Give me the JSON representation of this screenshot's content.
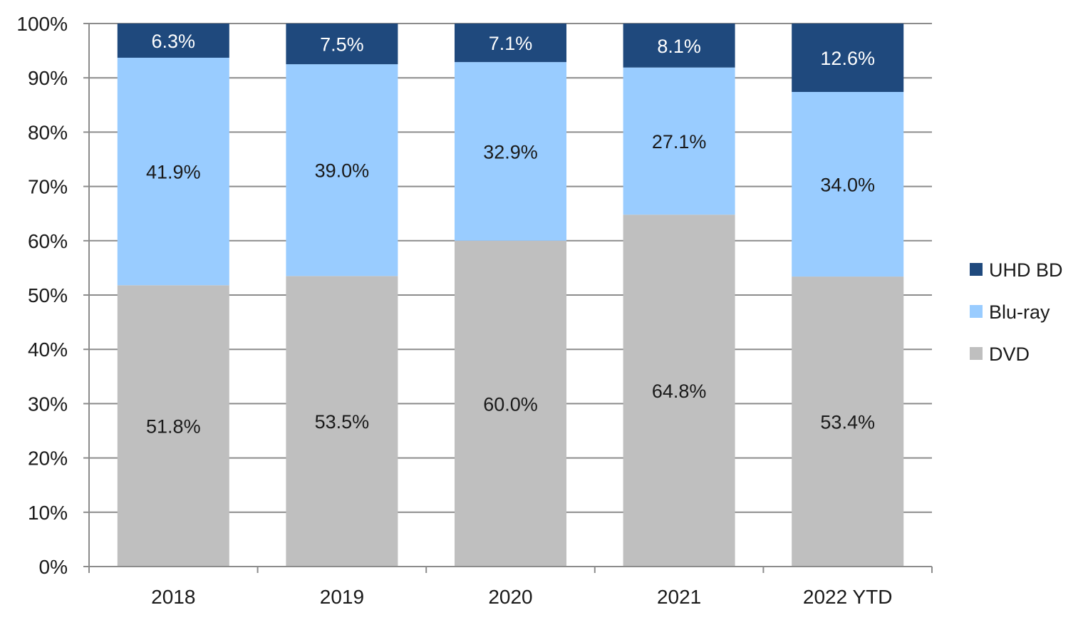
{
  "chart_data": {
    "type": "bar",
    "stacked": true,
    "percent": true,
    "title": "",
    "xlabel": "",
    "ylabel": "",
    "ylim": [
      0,
      100
    ],
    "y_ticks": [
      "0%",
      "10%",
      "20%",
      "30%",
      "40%",
      "50%",
      "60%",
      "70%",
      "80%",
      "90%",
      "100%"
    ],
    "grid": true,
    "legend_position": "right",
    "categories": [
      "2018",
      "2019",
      "2020",
      "2021",
      "2022 YTD"
    ],
    "series": [
      {
        "name": "DVD",
        "color": "#bfbfbf",
        "label_color": "#1a1a1a",
        "values": [
          51.8,
          53.5,
          60.0,
          64.8,
          53.4
        ],
        "labels": [
          "51.8%",
          "53.5%",
          "60.0%",
          "64.8%",
          "53.4%"
        ]
      },
      {
        "name": "Blu-ray",
        "color": "#99ccff",
        "label_color": "#1a1a1a",
        "values": [
          41.9,
          39.0,
          32.9,
          27.1,
          34.0
        ],
        "labels": [
          "41.9%",
          "39.0%",
          "32.9%",
          "27.1%",
          "34.0%"
        ]
      },
      {
        "name": "UHD BD",
        "color": "#1f497d",
        "label_color": "#ffffff",
        "values": [
          6.3,
          7.5,
          7.1,
          8.1,
          12.6
        ],
        "labels": [
          "6.3%",
          "7.5%",
          "7.1%",
          "8.1%",
          "12.6%"
        ]
      }
    ],
    "legend_order": [
      "UHD BD",
      "Blu-ray",
      "DVD"
    ]
  }
}
